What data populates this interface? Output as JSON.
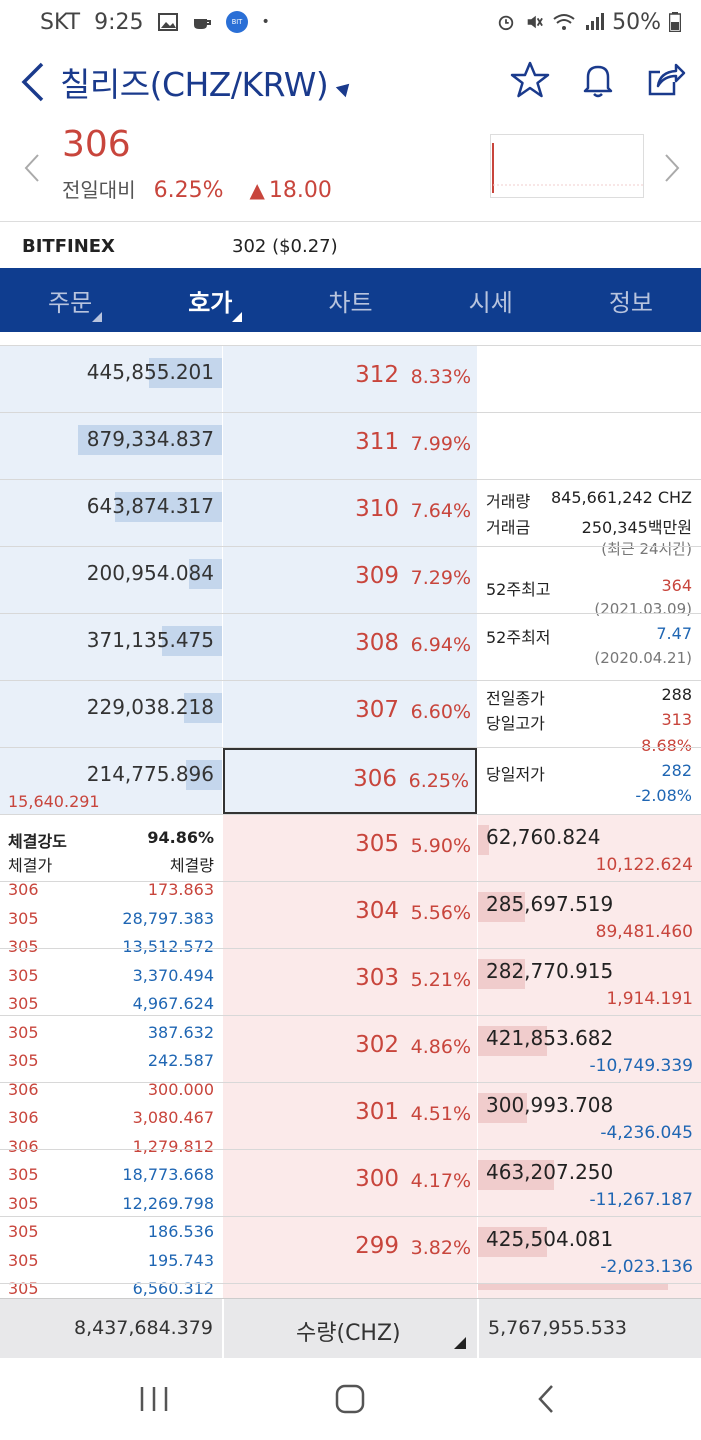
{
  "status": {
    "carrier": "SKT",
    "time": "9:25",
    "battery": "50%"
  },
  "header": {
    "title": "칠리즈(CHZ/KRW)"
  },
  "price": {
    "current": "306",
    "change_label": "전일대비",
    "change_pct": "6.25%",
    "change_amt": "18.00"
  },
  "exchange": {
    "name": "BITFINEX",
    "value": "302 ($0.27)"
  },
  "tabs": [
    {
      "label": "주문",
      "active": false
    },
    {
      "label": "호가",
      "active": true
    },
    {
      "label": "차트",
      "active": false
    },
    {
      "label": "시세",
      "active": false
    },
    {
      "label": "정보",
      "active": false
    }
  ],
  "asks": [
    {
      "qty": "445,855.201",
      "price": "312",
      "pct": "8.33%",
      "bar": 0.33
    },
    {
      "qty": "879,334.837",
      "price": "311",
      "pct": "7.99%",
      "bar": 0.65
    },
    {
      "qty": "643,874.317",
      "price": "310",
      "pct": "7.64%",
      "bar": 0.48
    },
    {
      "qty": "200,954.084",
      "price": "309",
      "pct": "7.29%",
      "bar": 0.15
    },
    {
      "qty": "371,135.475",
      "price": "308",
      "pct": "6.94%",
      "bar": 0.27
    },
    {
      "qty": "229,038.218",
      "price": "307",
      "pct": "6.60%",
      "bar": 0.17
    },
    {
      "qty": "214,775.896",
      "price": "306",
      "pct": "6.25%",
      "bar": 0.16,
      "extra": "15,640.291"
    }
  ],
  "bids": [
    {
      "qty": "62,760.824",
      "price": "305",
      "pct": "5.90%",
      "chg": "10,122.624",
      "chg_dir": "up",
      "bar": 0.05
    },
    {
      "qty": "285,697.519",
      "price": "304",
      "pct": "5.56%",
      "chg": "89,481.460",
      "chg_dir": "up",
      "bar": 0.21
    },
    {
      "qty": "282,770.915",
      "price": "303",
      "pct": "5.21%",
      "chg": "1,914.191",
      "chg_dir": "up",
      "bar": 0.21
    },
    {
      "qty": "421,853.682",
      "price": "302",
      "pct": "4.86%",
      "chg": "-10,749.339",
      "chg_dir": "down",
      "bar": 0.31
    },
    {
      "qty": "300,993.708",
      "price": "301",
      "pct": "4.51%",
      "chg": "-4,236.045",
      "chg_dir": "down",
      "bar": 0.22
    },
    {
      "qty": "463,207.250",
      "price": "300",
      "pct": "4.17%",
      "chg": "-11,267.187",
      "chg_dir": "down",
      "bar": 0.34
    },
    {
      "qty": "425,504.081",
      "price": "299",
      "pct": "3.82%",
      "chg": "-2,023.136",
      "chg_dir": "down",
      "bar": 0.31
    }
  ],
  "info": {
    "volume_label": "거래량",
    "volume": "845,661,242 CHZ",
    "amount_label": "거래금",
    "amount": "250,345백만원",
    "period": "(최근 24시간)",
    "high52_label": "52주최고",
    "high52": "364",
    "high52_date": "(2021.03.09)",
    "low52_label": "52주최저",
    "low52": "7.47",
    "low52_date": "(2020.04.21)",
    "prev_close_label": "전일종가",
    "prev_close": "288",
    "day_high_label": "당일고가",
    "day_high": "313",
    "day_high_pct": "8.68%",
    "day_low_label": "당일저가",
    "day_low": "282",
    "day_low_pct": "-2.08%"
  },
  "trades": {
    "strength_label": "체결강도",
    "strength": "94.86%",
    "price_header": "체결가",
    "qty_header": "체결량",
    "rows": [
      {
        "p": "306",
        "q": "173.863",
        "side": "buy"
      },
      {
        "p": "305",
        "q": "28,797.383",
        "side": "sell"
      },
      {
        "p": "305",
        "q": "13,512.572",
        "side": "sell"
      },
      {
        "p": "305",
        "q": "3,370.494",
        "side": "sell"
      },
      {
        "p": "305",
        "q": "4,967.624",
        "side": "sell"
      },
      {
        "p": "305",
        "q": "387.632",
        "side": "sell"
      },
      {
        "p": "305",
        "q": "242.587",
        "side": "sell"
      },
      {
        "p": "306",
        "q": "300.000",
        "side": "buy"
      },
      {
        "p": "306",
        "q": "3,080.467",
        "side": "buy"
      },
      {
        "p": "306",
        "q": "1,279.812",
        "side": "buy"
      },
      {
        "p": "305",
        "q": "18,773.668",
        "side": "sell"
      },
      {
        "p": "305",
        "q": "12,269.798",
        "side": "sell"
      },
      {
        "p": "305",
        "q": "186.536",
        "side": "sell"
      },
      {
        "p": "305",
        "q": "195.743",
        "side": "sell"
      },
      {
        "p": "305",
        "q": "6,560.312",
        "side": "sell"
      }
    ]
  },
  "summary": {
    "ask_total": "8,437,684.379",
    "unit": "수량(CHZ)",
    "bid_total": "5,767,955.533"
  },
  "colors": {
    "up": "#c8453c",
    "down": "#1f66b3",
    "tab_bg": "#0f3d8f",
    "ask_bg": "#e9f0f9",
    "bid_bg": "#fbeaea"
  }
}
